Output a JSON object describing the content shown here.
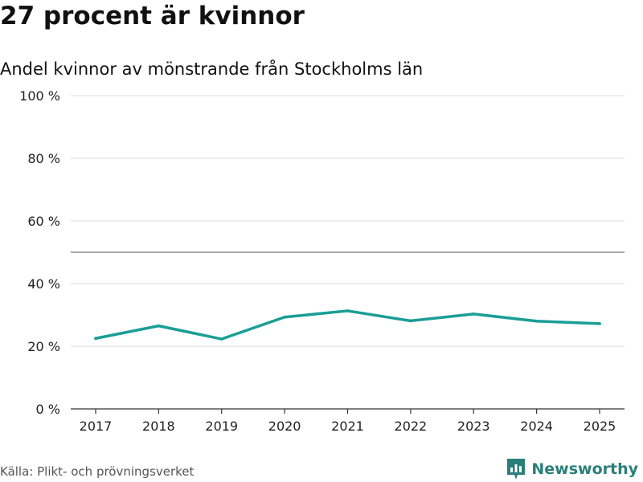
{
  "header": {
    "title": "27 procent är kvinnor",
    "subtitle": "Andel kvinnor av mönstrande från Stockholms län"
  },
  "footer": {
    "source": "Källa: Plikt- och prövningsverket",
    "brand": "Newsworthy",
    "brand_icon": "newsworthy-logo-icon"
  },
  "colors": {
    "line": "#1a9e96",
    "grid": "#dddddd",
    "reference": "#777777",
    "axis": "#333333",
    "brand": "#2a7f7a"
  },
  "chart_data": {
    "type": "line",
    "title": "27 procent är kvinnor",
    "subtitle": "Andel kvinnor av mönstrande från Stockholms län",
    "xlabel": "",
    "ylabel": "",
    "x": [
      "2017",
      "2018",
      "2019",
      "2020",
      "2021",
      "2022",
      "2023",
      "2024",
      "2025"
    ],
    "series": [
      {
        "name": "Andel kvinnor",
        "values": [
          22.5,
          26.5,
          22.3,
          29.3,
          31.3,
          28.1,
          30.3,
          28.0,
          27.2
        ]
      }
    ],
    "ylim": [
      0,
      100
    ],
    "yticks": [
      0,
      20,
      40,
      60,
      80,
      100
    ],
    "ytick_labels": [
      "0 %",
      "20 %",
      "40 %",
      "60 %",
      "80 %",
      "100 %"
    ],
    "reference_line": 50,
    "grid": true,
    "legend": "none"
  }
}
